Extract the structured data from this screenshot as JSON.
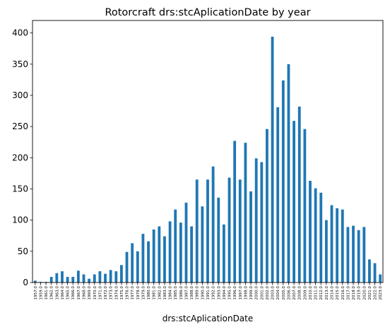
{
  "chart_data": {
    "type": "bar",
    "title": "Rotorcraft  drs:stcAplicationDate by year",
    "xlabel": "drs:stcAplicationDate",
    "ylabel": "",
    "ylim": [
      0,
      420
    ],
    "yticks": [
      0,
      50,
      100,
      150,
      200,
      250,
      300,
      350,
      400
    ],
    "grid": false,
    "legend": "none",
    "bar_color": "#1f77b4",
    "categories": [
      "1957.0",
      "1959.0",
      "1961.0",
      "1962.0",
      "1963.0",
      "1964.0",
      "1965.0",
      "1966.0",
      "1967.0",
      "1968.0",
      "1969.0",
      "1970.0",
      "1971.0",
      "1972.0",
      "1973.0",
      "1974.0",
      "1975.0",
      "1976.0",
      "1977.0",
      "1978.0",
      "1979.0",
      "1980.0",
      "1981.0",
      "1982.0",
      "1983.0",
      "1984.0",
      "1985.0",
      "1986.0",
      "1987.0",
      "1988.0",
      "1989.0",
      "1990.0",
      "1991.0",
      "1992.0",
      "1993.0",
      "1994.0",
      "1995.0",
      "1996.0",
      "1997.0",
      "1998.0",
      "1999.0",
      "2000.0",
      "2001.0",
      "2002.0",
      "2003.0",
      "2004.0",
      "2005.0",
      "2006.0",
      "2007.0",
      "2008.0",
      "2009.0",
      "2010.0",
      "2011.0",
      "2012.0",
      "2013.0",
      "2014.0",
      "2015.0",
      "2016.0",
      "2017.0",
      "2018.0",
      "2019.0",
      "2020.0",
      "2021.0",
      "2022.0",
      "2023.0"
    ],
    "values": [
      3,
      1,
      1,
      9,
      15,
      18,
      9,
      9,
      19,
      13,
      6,
      13,
      18,
      14,
      20,
      18,
      28,
      49,
      63,
      50,
      78,
      66,
      85,
      90,
      74,
      98,
      117,
      96,
      128,
      90,
      165,
      122,
      165,
      186,
      136,
      93,
      168,
      227,
      165,
      224,
      146,
      199,
      193,
      246,
      394,
      281,
      324,
      350,
      259,
      282,
      246,
      163,
      151,
      144,
      100,
      124,
      119,
      117,
      89,
      91,
      84,
      89,
      37,
      31,
      13
    ]
  }
}
